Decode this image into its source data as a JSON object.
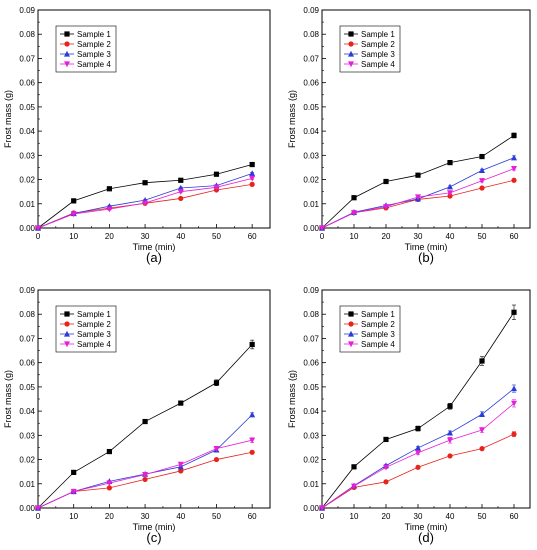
{
  "chart_data": [
    {
      "type": "line",
      "caption": "(a)",
      "xlabel": "Time (min)",
      "ylabel": "Frost mass (g)",
      "xlim": [
        0,
        65
      ],
      "ylim": [
        0,
        0.09
      ],
      "xticks": [
        0,
        10,
        20,
        30,
        40,
        50,
        60
      ],
      "yticks": [
        0.0,
        0.01,
        0.02,
        0.03,
        0.04,
        0.05,
        0.06,
        0.07,
        0.08,
        0.09
      ],
      "legend_position": "top-left",
      "x": [
        0,
        10,
        20,
        30,
        40,
        50,
        60
      ],
      "series": [
        {
          "name": "Sample 1",
          "color": "#000000",
          "marker": "square",
          "values": [
            0,
            0.0112,
            0.0162,
            0.0187,
            0.0197,
            0.0222,
            0.0262
          ],
          "errors": [
            0,
            0.0003,
            0.0004,
            0.0004,
            0.0004,
            0.0005,
            0.0006
          ]
        },
        {
          "name": "Sample 2",
          "color": "#e8231b",
          "marker": "circle",
          "values": [
            0,
            0.0062,
            0.0082,
            0.0102,
            0.0122,
            0.0157,
            0.018
          ],
          "errors": [
            0,
            0.0002,
            0.0003,
            0.0003,
            0.0003,
            0.0004,
            0.0004
          ]
        },
        {
          "name": "Sample 3",
          "color": "#2a3bd8",
          "marker": "triangle-up",
          "values": [
            0,
            0.006,
            0.009,
            0.0115,
            0.0165,
            0.0175,
            0.0225
          ],
          "errors": [
            0,
            0.0002,
            0.0003,
            0.0003,
            0.0004,
            0.0004,
            0.0005
          ]
        },
        {
          "name": "Sample 4",
          "color": "#e61fd8",
          "marker": "triangle-down",
          "values": [
            0,
            0.0058,
            0.0078,
            0.0103,
            0.015,
            0.0168,
            0.0205
          ],
          "errors": [
            0,
            0.0002,
            0.0003,
            0.0003,
            0.0004,
            0.0004,
            0.0005
          ]
        }
      ]
    },
    {
      "type": "line",
      "caption": "(b)",
      "xlabel": "Time (min)",
      "ylabel": "Frost mass (g)",
      "xlim": [
        0,
        65
      ],
      "ylim": [
        0,
        0.09
      ],
      "xticks": [
        0,
        10,
        20,
        30,
        40,
        50,
        60
      ],
      "yticks": [
        0.0,
        0.01,
        0.02,
        0.03,
        0.04,
        0.05,
        0.06,
        0.07,
        0.08,
        0.09
      ],
      "legend_position": "top-left",
      "x": [
        0,
        10,
        20,
        30,
        40,
        50,
        60
      ],
      "series": [
        {
          "name": "Sample 1",
          "color": "#000000",
          "marker": "square",
          "values": [
            0,
            0.0125,
            0.0192,
            0.0218,
            0.027,
            0.0295,
            0.0382
          ],
          "errors": [
            0,
            0.0004,
            0.0005,
            0.0005,
            0.0006,
            0.0008,
            0.001
          ]
        },
        {
          "name": "Sample 2",
          "color": "#e8231b",
          "marker": "circle",
          "values": [
            0,
            0.0063,
            0.0083,
            0.0118,
            0.0132,
            0.0165,
            0.0197
          ],
          "errors": [
            0,
            0.0002,
            0.0003,
            0.0003,
            0.0003,
            0.0004,
            0.0005
          ]
        },
        {
          "name": "Sample 3",
          "color": "#2a3bd8",
          "marker": "triangle-up",
          "values": [
            0,
            0.0065,
            0.0093,
            0.012,
            0.017,
            0.0238,
            0.029
          ],
          "errors": [
            0,
            0.0002,
            0.0003,
            0.0003,
            0.0004,
            0.0005,
            0.0008
          ]
        },
        {
          "name": "Sample 4",
          "color": "#e61fd8",
          "marker": "triangle-down",
          "values": [
            0,
            0.0063,
            0.0088,
            0.0128,
            0.0145,
            0.0195,
            0.0245
          ],
          "errors": [
            0,
            0.0002,
            0.0003,
            0.0003,
            0.0004,
            0.0005,
            0.0006
          ]
        }
      ]
    },
    {
      "type": "line",
      "caption": "(c)",
      "xlabel": "Time (min)",
      "ylabel": "Frost mass (g)",
      "xlim": [
        0,
        65
      ],
      "ylim": [
        0,
        0.09
      ],
      "xticks": [
        0,
        10,
        20,
        30,
        40,
        50,
        60
      ],
      "yticks": [
        0.0,
        0.01,
        0.02,
        0.03,
        0.04,
        0.05,
        0.06,
        0.07,
        0.08,
        0.09
      ],
      "legend_position": "top-left",
      "x": [
        0,
        10,
        20,
        30,
        40,
        50,
        60
      ],
      "series": [
        {
          "name": "Sample 1",
          "color": "#000000",
          "marker": "square",
          "values": [
            0,
            0.0147,
            0.0233,
            0.0357,
            0.0433,
            0.0517,
            0.0675
          ],
          "errors": [
            0,
            0.0004,
            0.0006,
            0.0008,
            0.0008,
            0.0012,
            0.0018
          ]
        },
        {
          "name": "Sample 2",
          "color": "#e8231b",
          "marker": "circle",
          "values": [
            0,
            0.0068,
            0.0083,
            0.0118,
            0.0153,
            0.02,
            0.023
          ],
          "errors": [
            0,
            0.0002,
            0.0003,
            0.0003,
            0.0004,
            0.0004,
            0.0006
          ]
        },
        {
          "name": "Sample 3",
          "color": "#2a3bd8",
          "marker": "triangle-up",
          "values": [
            0,
            0.0068,
            0.011,
            0.014,
            0.017,
            0.024,
            0.0385
          ],
          "errors": [
            0,
            0.0002,
            0.0003,
            0.0003,
            0.0004,
            0.0005,
            0.0008
          ]
        },
        {
          "name": "Sample 4",
          "color": "#e61fd8",
          "marker": "triangle-down",
          "values": [
            0,
            0.0068,
            0.0103,
            0.0138,
            0.018,
            0.0245,
            0.028
          ],
          "errors": [
            0,
            0.0002,
            0.0003,
            0.0003,
            0.0004,
            0.0005,
            0.001
          ]
        }
      ]
    },
    {
      "type": "line",
      "caption": "(d)",
      "xlabel": "Time (min)",
      "ylabel": "Frost mass (g)",
      "xlim": [
        0,
        65
      ],
      "ylim": [
        0,
        0.09
      ],
      "xticks": [
        0,
        10,
        20,
        30,
        40,
        50,
        60
      ],
      "yticks": [
        0.0,
        0.01,
        0.02,
        0.03,
        0.04,
        0.05,
        0.06,
        0.07,
        0.08,
        0.09
      ],
      "legend_position": "top-left",
      "x": [
        0,
        10,
        20,
        30,
        40,
        50,
        60
      ],
      "series": [
        {
          "name": "Sample 1",
          "color": "#000000",
          "marker": "square",
          "values": [
            0,
            0.017,
            0.0283,
            0.0328,
            0.042,
            0.0607,
            0.0808
          ],
          "errors": [
            0,
            0.0005,
            0.0006,
            0.001,
            0.0012,
            0.0018,
            0.003
          ]
        },
        {
          "name": "Sample 2",
          "color": "#e8231b",
          "marker": "circle",
          "values": [
            0,
            0.0085,
            0.0108,
            0.0168,
            0.0215,
            0.0245,
            0.0305
          ],
          "errors": [
            0,
            0.0003,
            0.0003,
            0.0004,
            0.0005,
            0.0006,
            0.001
          ]
        },
        {
          "name": "Sample 3",
          "color": "#2a3bd8",
          "marker": "triangle-up",
          "values": [
            0,
            0.0092,
            0.0175,
            0.0248,
            0.031,
            0.0387,
            0.0493
          ],
          "errors": [
            0,
            0.0003,
            0.0005,
            0.0006,
            0.0008,
            0.001,
            0.0015
          ]
        },
        {
          "name": "Sample 4",
          "color": "#e61fd8",
          "marker": "triangle-down",
          "values": [
            0,
            0.009,
            0.0168,
            0.0228,
            0.028,
            0.0322,
            0.0432
          ],
          "errors": [
            0,
            0.0003,
            0.0005,
            0.0006,
            0.0012,
            0.001,
            0.0015
          ]
        }
      ]
    }
  ]
}
